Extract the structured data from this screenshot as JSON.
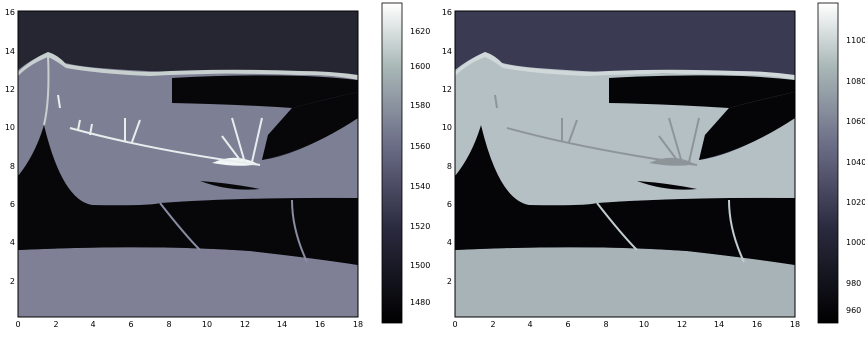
{
  "panels": [
    {
      "id": "left",
      "xticks": [
        "0",
        "2",
        "4",
        "6",
        "8",
        "10",
        "12",
        "14",
        "16",
        "18"
      ],
      "yticks": [
        "2",
        "4",
        "6",
        "8",
        "10",
        "12",
        "14",
        "16"
      ],
      "colorbar_ticks": [
        "1620",
        "1600",
        "1580",
        "1560",
        "1540",
        "1520",
        "1500",
        "1480"
      ],
      "colors": {
        "sky": "#262633",
        "dark": "#070709",
        "body": "#7d7f95",
        "basement": "#7f8096",
        "highlight": "#f2f6f6",
        "crust": "#c8cfcf"
      }
    },
    {
      "id": "right",
      "xticks": [
        "0",
        "2",
        "4",
        "6",
        "8",
        "10",
        "12",
        "14",
        "16",
        "18"
      ],
      "yticks": [
        "2",
        "4",
        "6",
        "8",
        "10",
        "12",
        "14",
        "16"
      ],
      "colorbar_ticks": [
        "1100",
        "1080",
        "1060",
        "1040",
        "1020",
        "1000",
        "980",
        "960"
      ],
      "colors": {
        "sky": "#3a3a52",
        "dark": "#050507",
        "body": "#b5c0c4",
        "basement": "#a7b3b7",
        "highlight": "#8d9599",
        "crust": "#d0d8da"
      }
    }
  ]
}
